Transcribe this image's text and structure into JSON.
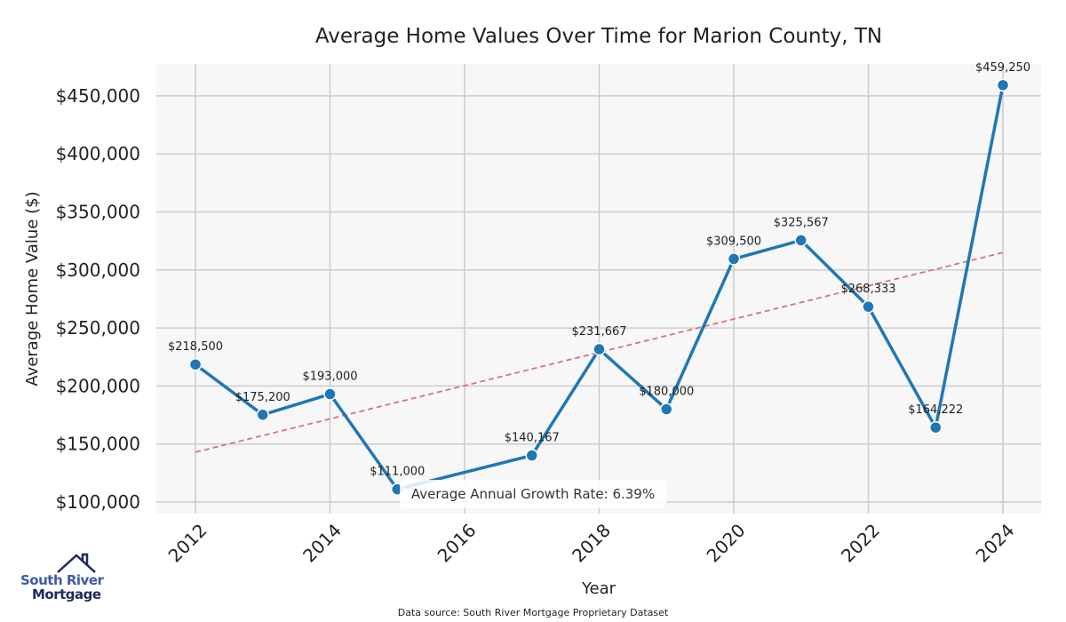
{
  "chart_data": {
    "type": "line",
    "title": "Average Home Values Over Time for Marion County, TN",
    "xlabel": "Year",
    "ylabel": "Average Home Value ($)",
    "x": [
      2012,
      2013,
      2014,
      2015,
      2017,
      2018,
      2019,
      2020,
      2021,
      2022,
      2023,
      2024
    ],
    "values": [
      218500,
      175200,
      193000,
      111000,
      140167,
      231667,
      180000,
      309500,
      325567,
      268333,
      164222,
      459250
    ],
    "data_labels": [
      "$218,500",
      "$175,200",
      "$193,000",
      "$111,000",
      "$140,167",
      "$231,667",
      "$180,000",
      "$309,500",
      "$325,567",
      "$268,333",
      "$164,222",
      "$459,250"
    ],
    "xlim": [
      2011.4,
      2024.6
    ],
    "ylim": [
      90000,
      475000
    ],
    "x_ticks": [
      2012,
      2014,
      2016,
      2018,
      2020,
      2022,
      2024
    ],
    "x_tick_labels": [
      "2012",
      "2014",
      "2016",
      "2018",
      "2020",
      "2022",
      "2024"
    ],
    "y_ticks": [
      100000,
      150000,
      200000,
      250000,
      300000,
      350000,
      400000,
      450000
    ],
    "y_tick_labels": [
      "$100,000",
      "$150,000",
      "$200,000",
      "$250,000",
      "$300,000",
      "$350,000",
      "$400,000",
      "$450,000"
    ],
    "trend_line": {
      "x": [
        2012,
        2024
      ],
      "y": [
        143000,
        315000
      ],
      "color": "#d9737a"
    },
    "annotation": "Average Annual Growth Rate: 6.39%",
    "series_color": "#1f77b4",
    "grid": true
  },
  "footer": {
    "source": "Data source: South River Mortgage Proprietary Dataset"
  },
  "logo": {
    "line1": "South River",
    "line2": "Mortgage"
  }
}
